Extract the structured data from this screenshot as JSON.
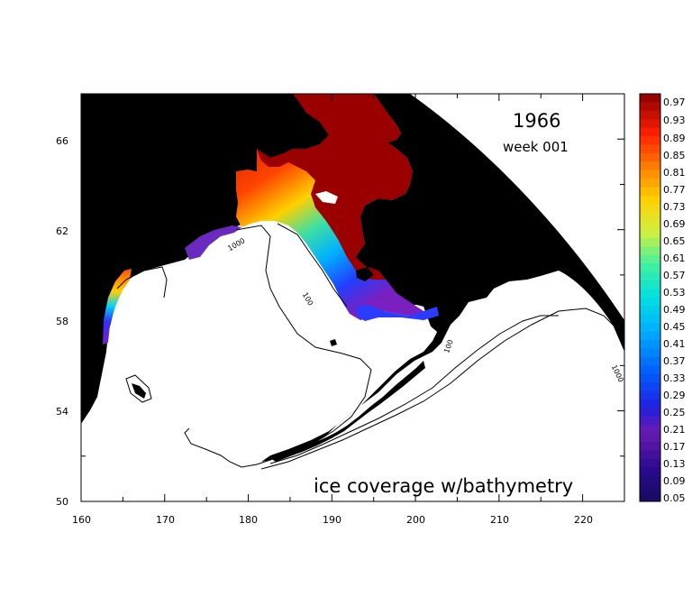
{
  "map": {
    "year": "1966",
    "week": "week 001",
    "caption": "ice coverage w/bathymetry",
    "lat_ticks": [
      "50",
      "54",
      "58",
      "62",
      "66"
    ],
    "lon_ticks": [
      "160",
      "170",
      "180",
      "190",
      "200",
      "210",
      "220"
    ],
    "contour_labels": [
      "1000",
      "100",
      "100",
      "1000"
    ],
    "colorbar_labels": [
      "0.97",
      "0.93",
      "0.89",
      "0.85",
      "0.81",
      "0.77",
      "0.73",
      "0.69",
      "0.65",
      "0.61",
      "0.57",
      "0.53",
      "0.49",
      "0.45",
      "0.41",
      "0.37",
      "0.33",
      "0.29",
      "0.25",
      "0.21",
      "0.17",
      "0.13",
      "0.09",
      "0.05"
    ],
    "colors": {
      "land": "#000000",
      "ocean": "#ffffff",
      "ice_high": "#990000",
      "ice_low": "#1a0080"
    }
  }
}
